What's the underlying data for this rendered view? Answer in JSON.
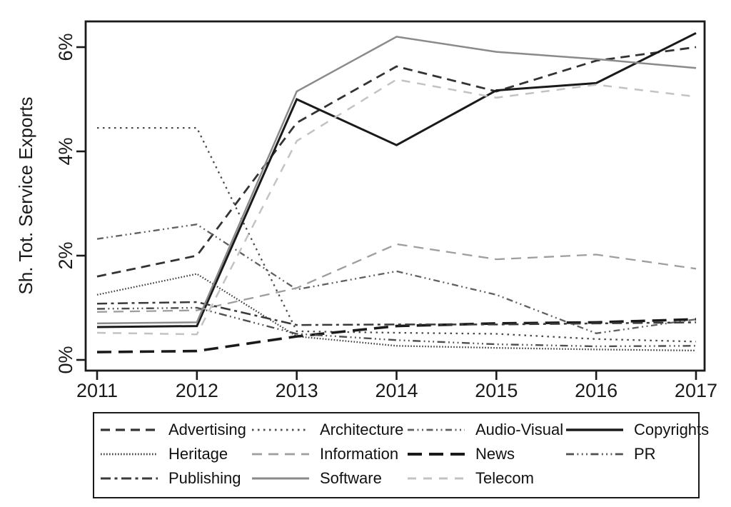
{
  "page": {
    "background_color": "#ffffff",
    "kind": "statistical line chart figure"
  },
  "chart_data": {
    "type": "line",
    "title": "",
    "xlabel": "",
    "ylabel": "Sh. Tot. Service Exports",
    "x_tick_labels": [
      "2011",
      "2012",
      "2013",
      "2014",
      "2015",
      "2016",
      "2017"
    ],
    "y_tick_labels": [
      "0%",
      "2%",
      "4%",
      "6%"
    ],
    "y_tick_values": [
      0,
      2,
      4,
      6
    ],
    "ylim": [
      0,
      6.7
    ],
    "grid": false,
    "legend_position": "bottom-box",
    "axis_color": "#1a1a1a",
    "series": [
      {
        "name": "Advertising",
        "values": [
          1.6,
          2.0,
          4.55,
          5.63,
          5.15,
          5.74,
          6.0
        ],
        "color": "#333333",
        "dash": "13 8",
        "width": 2.8
      },
      {
        "name": "Architecture",
        "values": [
          4.45,
          4.45,
          0.55,
          0.52,
          0.5,
          0.4,
          0.35
        ],
        "color": "#4a4a4a",
        "dash": "2.5 5.5",
        "width": 2.3
      },
      {
        "name": "Audio-Visual",
        "values": [
          2.32,
          2.6,
          1.35,
          1.7,
          1.25,
          0.51,
          0.78
        ],
        "color": "#5f5f5f",
        "dash": "9 4.5 2 4.5 2 4.5",
        "width": 2.3
      },
      {
        "name": "Copyrights",
        "values": [
          0.63,
          0.65,
          5.0,
          4.12,
          5.17,
          5.31,
          6.27
        ],
        "color": "#1a1a1a",
        "dash": "",
        "width": 3.0
      },
      {
        "name": "Heritage",
        "values": [
          1.25,
          1.65,
          0.45,
          0.27,
          0.23,
          0.2,
          0.18
        ],
        "color": "#3f3f3f",
        "dash": "1.6 2.4",
        "width": 2.3
      },
      {
        "name": "Information",
        "values": [
          0.92,
          0.95,
          1.38,
          2.22,
          1.93,
          2.02,
          1.75
        ],
        "color": "#9e9e9e",
        "dash": "14 9",
        "width": 2.3
      },
      {
        "name": "News",
        "values": [
          0.15,
          0.17,
          0.45,
          0.65,
          0.7,
          0.72,
          0.78
        ],
        "color": "#1a1a1a",
        "dash": "20 10",
        "width": 3.6
      },
      {
        "name": "PR",
        "values": [
          0.98,
          1.0,
          0.5,
          0.38,
          0.3,
          0.26,
          0.27
        ],
        "color": "#4f4f4f",
        "dash": "11 4.5 1.8 4.5 1.8 4.5 1.8 4.5",
        "width": 2.4
      },
      {
        "name": "Publishing",
        "values": [
          1.08,
          1.11,
          0.67,
          0.68,
          0.68,
          0.7,
          0.72
        ],
        "color": "#3a3a3a",
        "dash": "14 5.5 4 5.5",
        "width": 2.5
      },
      {
        "name": "Software",
        "values": [
          0.7,
          0.72,
          5.15,
          6.2,
          5.91,
          5.77,
          5.6
        ],
        "color": "#8a8a8a",
        "dash": "",
        "width": 2.5
      },
      {
        "name": "Telecom",
        "values": [
          0.52,
          0.49,
          4.2,
          5.38,
          5.03,
          5.28,
          5.05
        ],
        "color": "#c3c3c3",
        "dash": "12 10",
        "width": 2.5
      }
    ]
  }
}
